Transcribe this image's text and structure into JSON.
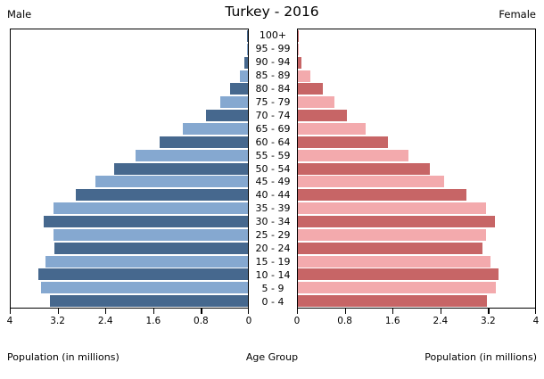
{
  "title": "Turkey - 2016",
  "header": {
    "male_label": "Male",
    "female_label": "Female"
  },
  "axis": {
    "male_tick_labels": [
      "4",
      "3.2",
      "2.4",
      "1.6",
      "0.8",
      "0"
    ],
    "female_tick_labels": [
      "0",
      "0.8",
      "1.6",
      "2.4",
      "3.2",
      "4"
    ],
    "male_axis_label": "Population (in millions)",
    "female_axis_label": "Population (in millions)",
    "center_axis_label": "Age Group"
  },
  "colors": {
    "male_dark": "#46688e",
    "male_light": "#85a8d0",
    "female_dark": "#c76566",
    "female_light": "#f3aaad"
  },
  "chart_data": {
    "type": "bar",
    "subtype": "population-pyramid",
    "title": "Turkey - 2016",
    "xlabel": "Population (in millions)",
    "ylabel": "Age Group",
    "xlim_each_side": [
      0,
      4
    ],
    "x_tick_step": 0.8,
    "grid": false,
    "categories_top_to_bottom": [
      "100+",
      "95 - 99",
      "90 - 94",
      "85 - 89",
      "80 - 84",
      "75 - 79",
      "70 - 74",
      "65 - 69",
      "60 - 64",
      "55 - 59",
      "50 - 54",
      "45 - 49",
      "40 - 44",
      "35 - 39",
      "30 - 34",
      "25 - 29",
      "20 - 24",
      "15 - 19",
      "10 - 14",
      "5 - 9",
      "0 - 4"
    ],
    "series": [
      {
        "name": "Male",
        "side": "left",
        "values_top_to_bottom": [
          0.02,
          0.01,
          0.06,
          0.13,
          0.3,
          0.47,
          0.71,
          1.1,
          1.49,
          1.89,
          2.25,
          2.57,
          2.9,
          3.28,
          3.45,
          3.28,
          3.27,
          3.42,
          3.54,
          3.49,
          3.34
        ]
      },
      {
        "name": "Female",
        "side": "right",
        "values_top_to_bottom": [
          0.02,
          0.01,
          0.06,
          0.21,
          0.42,
          0.62,
          0.82,
          1.15,
          1.52,
          1.87,
          2.23,
          2.47,
          2.84,
          3.18,
          3.33,
          3.17,
          3.12,
          3.25,
          3.38,
          3.34,
          3.19
        ]
      }
    ]
  }
}
